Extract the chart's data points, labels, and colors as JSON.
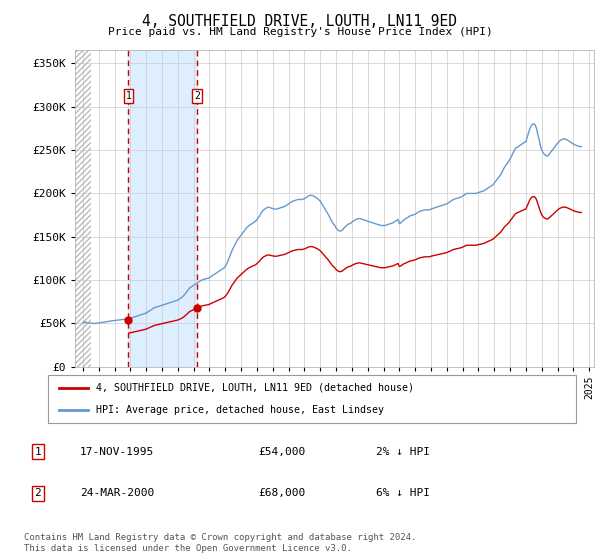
{
  "title": "4, SOUTHFIELD DRIVE, LOUTH, LN11 9ED",
  "subtitle": "Price paid vs. HM Land Registry's House Price Index (HPI)",
  "ylabel_ticks": [
    "£0",
    "£50K",
    "£100K",
    "£150K",
    "£200K",
    "£250K",
    "£300K",
    "£350K"
  ],
  "ytick_vals": [
    0,
    50000,
    100000,
    150000,
    200000,
    250000,
    300000,
    350000
  ],
  "ylim": [
    0,
    365000
  ],
  "xlim_start": 1993.0,
  "xlim_end": 2025.3,
  "transaction1": {
    "date_num": 1995.88,
    "price": 54000,
    "label": "1",
    "date_str": "17-NOV-1995",
    "price_str": "£54,000",
    "hpi_pct": "2% ↓ HPI"
  },
  "transaction2": {
    "date_num": 2000.23,
    "price": 68000,
    "label": "2",
    "date_str": "24-MAR-2000",
    "price_str": "£68,000",
    "hpi_pct": "6% ↓ HPI"
  },
  "legend_line1": "4, SOUTHFIELD DRIVE, LOUTH, LN11 9ED (detached house)",
  "legend_line2": "HPI: Average price, detached house, East Lindsey",
  "footer": "Contains HM Land Registry data © Crown copyright and database right 2024.\nThis data is licensed under the Open Government Licence v3.0.",
  "line_color_price": "#cc0000",
  "line_color_hpi": "#6699cc",
  "shade_color": "#ddeeff",
  "grid_color": "#cccccc",
  "background_color": "#ffffff",
  "hpi_data": {
    "years": [
      1993.0,
      1993.083,
      1993.167,
      1993.25,
      1993.333,
      1993.417,
      1993.5,
      1993.583,
      1993.667,
      1993.75,
      1993.833,
      1993.917,
      1994.0,
      1994.083,
      1994.167,
      1994.25,
      1994.333,
      1994.417,
      1994.5,
      1994.583,
      1994.667,
      1994.75,
      1994.833,
      1994.917,
      1995.0,
      1995.083,
      1995.167,
      1995.25,
      1995.333,
      1995.417,
      1995.5,
      1995.583,
      1995.667,
      1995.75,
      1995.833,
      1995.917,
      1996.0,
      1996.083,
      1996.167,
      1996.25,
      1996.333,
      1996.417,
      1996.5,
      1996.583,
      1996.667,
      1996.75,
      1996.833,
      1996.917,
      1997.0,
      1997.083,
      1997.167,
      1997.25,
      1997.333,
      1997.417,
      1997.5,
      1997.583,
      1997.667,
      1997.75,
      1997.833,
      1997.917,
      1998.0,
      1998.083,
      1998.167,
      1998.25,
      1998.333,
      1998.417,
      1998.5,
      1998.583,
      1998.667,
      1998.75,
      1998.833,
      1998.917,
      1999.0,
      1999.083,
      1999.167,
      1999.25,
      1999.333,
      1999.417,
      1999.5,
      1999.583,
      1999.667,
      1999.75,
      1999.833,
      1999.917,
      2000.0,
      2000.083,
      2000.167,
      2000.25,
      2000.333,
      2000.417,
      2000.5,
      2000.583,
      2000.667,
      2000.75,
      2000.833,
      2000.917,
      2001.0,
      2001.083,
      2001.167,
      2001.25,
      2001.333,
      2001.417,
      2001.5,
      2001.583,
      2001.667,
      2001.75,
      2001.833,
      2001.917,
      2002.0,
      2002.083,
      2002.167,
      2002.25,
      2002.333,
      2002.417,
      2002.5,
      2002.583,
      2002.667,
      2002.75,
      2002.833,
      2002.917,
      2003.0,
      2003.083,
      2003.167,
      2003.25,
      2003.333,
      2003.417,
      2003.5,
      2003.583,
      2003.667,
      2003.75,
      2003.833,
      2003.917,
      2004.0,
      2004.083,
      2004.167,
      2004.25,
      2004.333,
      2004.417,
      2004.5,
      2004.583,
      2004.667,
      2004.75,
      2004.833,
      2004.917,
      2005.0,
      2005.083,
      2005.167,
      2005.25,
      2005.333,
      2005.417,
      2005.5,
      2005.583,
      2005.667,
      2005.75,
      2005.833,
      2005.917,
      2006.0,
      2006.083,
      2006.167,
      2006.25,
      2006.333,
      2006.417,
      2006.5,
      2006.583,
      2006.667,
      2006.75,
      2006.833,
      2006.917,
      2007.0,
      2007.083,
      2007.167,
      2007.25,
      2007.333,
      2007.417,
      2007.5,
      2007.583,
      2007.667,
      2007.75,
      2007.833,
      2007.917,
      2008.0,
      2008.083,
      2008.167,
      2008.25,
      2008.333,
      2008.417,
      2008.5,
      2008.583,
      2008.667,
      2008.75,
      2008.833,
      2008.917,
      2009.0,
      2009.083,
      2009.167,
      2009.25,
      2009.333,
      2009.417,
      2009.5,
      2009.583,
      2009.667,
      2009.75,
      2009.833,
      2009.917,
      2010.0,
      2010.083,
      2010.167,
      2010.25,
      2010.333,
      2010.417,
      2010.5,
      2010.583,
      2010.667,
      2010.75,
      2010.833,
      2010.917,
      2011.0,
      2011.083,
      2011.167,
      2011.25,
      2011.333,
      2011.417,
      2011.5,
      2011.583,
      2011.667,
      2011.75,
      2011.833,
      2011.917,
      2012.0,
      2012.083,
      2012.167,
      2012.25,
      2012.333,
      2012.417,
      2012.5,
      2012.583,
      2012.667,
      2012.75,
      2012.833,
      2012.917,
      2013.0,
      2013.083,
      2013.167,
      2013.25,
      2013.333,
      2013.417,
      2013.5,
      2013.583,
      2013.667,
      2013.75,
      2013.833,
      2013.917,
      2014.0,
      2014.083,
      2014.167,
      2014.25,
      2014.333,
      2014.417,
      2014.5,
      2014.583,
      2014.667,
      2014.75,
      2014.833,
      2014.917,
      2015.0,
      2015.083,
      2015.167,
      2015.25,
      2015.333,
      2015.417,
      2015.5,
      2015.583,
      2015.667,
      2015.75,
      2015.833,
      2015.917,
      2016.0,
      2016.083,
      2016.167,
      2016.25,
      2016.333,
      2016.417,
      2016.5,
      2016.583,
      2016.667,
      2016.75,
      2016.833,
      2016.917,
      2017.0,
      2017.083,
      2017.167,
      2017.25,
      2017.333,
      2017.417,
      2017.5,
      2017.583,
      2017.667,
      2017.75,
      2017.833,
      2017.917,
      2018.0,
      2018.083,
      2018.167,
      2018.25,
      2018.333,
      2018.417,
      2018.5,
      2018.583,
      2018.667,
      2018.75,
      2018.833,
      2018.917,
      2019.0,
      2019.083,
      2019.167,
      2019.25,
      2019.333,
      2019.417,
      2019.5,
      2019.583,
      2019.667,
      2019.75,
      2019.833,
      2019.917,
      2020.0,
      2020.083,
      2020.167,
      2020.25,
      2020.333,
      2020.417,
      2020.5,
      2020.583,
      2020.667,
      2020.75,
      2020.833,
      2020.917,
      2021.0,
      2021.083,
      2021.167,
      2021.25,
      2021.333,
      2021.417,
      2021.5,
      2021.583,
      2021.667,
      2021.75,
      2021.833,
      2021.917,
      2022.0,
      2022.083,
      2022.167,
      2022.25,
      2022.333,
      2022.417,
      2022.5,
      2022.583,
      2022.667,
      2022.75,
      2022.833,
      2022.917,
      2023.0,
      2023.083,
      2023.167,
      2023.25,
      2023.333,
      2023.417,
      2023.5,
      2023.583,
      2023.667,
      2023.75,
      2023.833,
      2023.917,
      2024.0,
      2024.083,
      2024.167,
      2024.25,
      2024.333,
      2024.417,
      2024.5
    ],
    "values": [
      51000,
      51200,
      51400,
      51000,
      50800,
      50600,
      50400,
      50200,
      50100,
      50000,
      50200,
      50400,
      50600,
      50800,
      51000,
      51200,
      51500,
      51800,
      52000,
      52200,
      52500,
      52800,
      53000,
      53200,
      53400,
      53600,
      53800,
      54000,
      54200,
      54400,
      54600,
      54800,
      55000,
      55200,
      55400,
      55500,
      56000,
      56500,
      57000,
      57500,
      58000,
      58500,
      59000,
      59500,
      60000,
      60500,
      61000,
      61500,
      62000,
      63000,
      64000,
      65000,
      66000,
      67000,
      68000,
      68500,
      69000,
      69500,
      70000,
      70500,
      71000,
      71500,
      72000,
      72500,
      73000,
      73500,
      74000,
      74500,
      75000,
      75500,
      76000,
      76500,
      77000,
      78000,
      79000,
      80000,
      81500,
      83000,
      85000,
      87000,
      89000,
      91000,
      92000,
      93000,
      94000,
      95000,
      96000,
      97000,
      98000,
      99000,
      100000,
      100500,
      101000,
      101500,
      101800,
      102000,
      103000,
      104000,
      105000,
      106000,
      107000,
      108000,
      109000,
      110000,
      111000,
      112000,
      113000,
      114000,
      116000,
      119000,
      122000,
      126000,
      130000,
      134000,
      137000,
      140000,
      143000,
      146000,
      148000,
      150000,
      152000,
      154000,
      156000,
      158000,
      160000,
      161500,
      163000,
      164000,
      165000,
      166000,
      167000,
      168000,
      170000,
      172000,
      174000,
      177000,
      179000,
      181000,
      182000,
      183000,
      184000,
      184000,
      183500,
      183000,
      182500,
      182000,
      182000,
      182000,
      182500,
      183000,
      183500,
      184000,
      184500,
      185000,
      186000,
      187000,
      188000,
      189000,
      190000,
      191000,
      191500,
      192000,
      192500,
      193000,
      193000,
      193000,
      193000,
      193500,
      194000,
      195000,
      196000,
      197000,
      197500,
      198000,
      197500,
      197000,
      196000,
      195000,
      194000,
      192500,
      191000,
      188500,
      186000,
      183500,
      181000,
      178500,
      176000,
      173000,
      170000,
      167000,
      165000,
      163000,
      160000,
      158500,
      157000,
      156500,
      157000,
      158000,
      160000,
      161500,
      163000,
      164500,
      165000,
      165500,
      167000,
      168000,
      169000,
      170000,
      170500,
      171000,
      171000,
      170500,
      170000,
      169500,
      169000,
      168500,
      168000,
      167500,
      167000,
      166500,
      166000,
      165500,
      165000,
      164500,
      164000,
      163500,
      163000,
      163000,
      163000,
      163000,
      163500,
      164000,
      164500,
      165000,
      165500,
      166000,
      167000,
      168000,
      169000,
      170000,
      165000,
      166000,
      167500,
      169000,
      170000,
      171000,
      172000,
      173000,
      174000,
      174500,
      175000,
      175500,
      176000,
      177000,
      178000,
      179000,
      179500,
      180000,
      180500,
      181000,
      181000,
      181000,
      181000,
      181000,
      182000,
      182500,
      183000,
      183500,
      184000,
      184500,
      185000,
      185500,
      186000,
      186500,
      187000,
      187500,
      188000,
      189000,
      190000,
      191000,
      192000,
      193000,
      193500,
      194000,
      194500,
      195000,
      195500,
      196000,
      197000,
      198000,
      199000,
      200000,
      200000,
      200000,
      200000,
      200000,
      200000,
      200000,
      200000,
      200500,
      201000,
      201500,
      202000,
      202500,
      203000,
      204000,
      205000,
      206000,
      207000,
      208000,
      209000,
      210000,
      212000,
      214000,
      216000,
      218000,
      220000,
      222000,
      225000,
      228000,
      231000,
      233000,
      235000,
      237000,
      240000,
      243000,
      246000,
      249000,
      252000,
      253000,
      254000,
      255000,
      256000,
      257000,
      258000,
      259000,
      260000,
      265000,
      270000,
      275000,
      278000,
      280000,
      280000,
      279000,
      275000,
      268000,
      262000,
      255000,
      250000,
      247000,
      245000,
      244000,
      243000,
      244000,
      246000,
      248000,
      250000,
      252000,
      254000,
      256000,
      258000,
      260000,
      261000,
      262000,
      262500,
      263000,
      262500,
      262000,
      261000,
      260000,
      259000,
      258000,
      257000,
      256000,
      255500,
      255000,
      254500,
      254000,
      254000
    ]
  }
}
